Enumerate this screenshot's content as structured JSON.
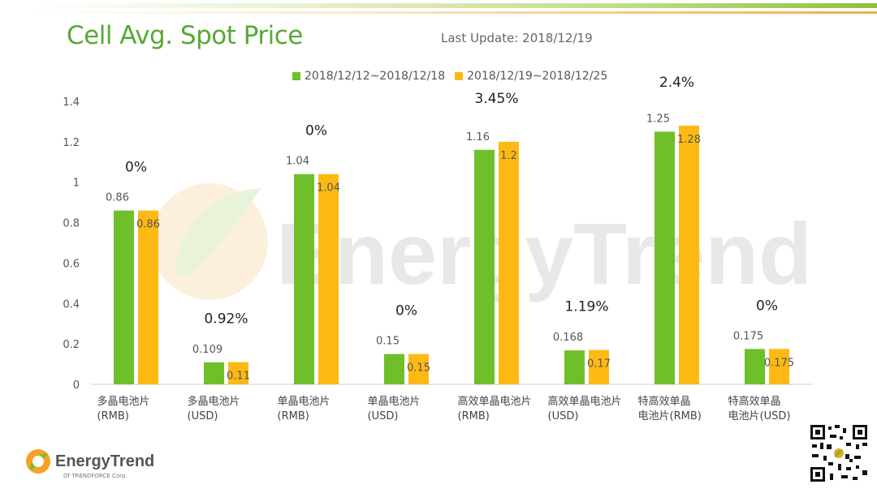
{
  "header": {
    "title": "Cell Avg. Spot Price",
    "last_update": "Last Update: 2018/12/19"
  },
  "colors": {
    "green": "#6fbf2a",
    "orange": "#fdb913",
    "title_green": "#57a933"
  },
  "watermark": {
    "text": "EnergyTrend"
  },
  "footer": {
    "brand": "EnergyTrend",
    "sub": "Of TRENDFORCE Corp."
  },
  "chart_data": {
    "type": "bar",
    "title": "",
    "xlabel": "",
    "ylabel": "",
    "ylim": [
      0,
      1.4
    ],
    "yticks": [
      "0",
      "0.2",
      "0.4",
      "0.6",
      "0.8",
      "1",
      "1.2",
      "1.4"
    ],
    "grid": false,
    "legend_position": "top",
    "categories": [
      [
        "多晶电池片",
        "(RMB)"
      ],
      [
        "多晶电池片",
        "(USD)"
      ],
      [
        "单晶电池片",
        "(RMB)"
      ],
      [
        "单晶电池片",
        "(USD)"
      ],
      [
        "高效单晶电池片",
        "(RMB)"
      ],
      [
        "高效单晶电池片",
        "(USD)"
      ],
      [
        "特高效单晶",
        "电池片(RMB)"
      ],
      [
        "特高效单晶",
        "电池片(USD)"
      ]
    ],
    "series": [
      {
        "name": "2018/12/12~2018/12/18",
        "color": "#6fbf2a",
        "values": [
          0.86,
          0.109,
          1.04,
          0.15,
          1.16,
          0.168,
          1.25,
          0.175
        ],
        "labels": [
          "0.86",
          "0.109",
          "1.04",
          "0.15",
          "1.16",
          "0.168",
          "1.25",
          "0.175"
        ]
      },
      {
        "name": "2018/12/19~2018/12/25",
        "color": "#fdb913",
        "values": [
          0.86,
          0.11,
          1.04,
          0.15,
          1.2,
          0.17,
          1.28,
          0.175
        ],
        "labels": [
          "0.86",
          "0.11",
          "1.04",
          "0.15",
          "1.2",
          "0.17",
          "1.28",
          "0.175"
        ]
      }
    ],
    "changes": [
      "0%",
      "0.92%",
      "0%",
      "0%",
      "3.45%",
      "1.19%",
      "2.4%",
      "0%"
    ]
  }
}
